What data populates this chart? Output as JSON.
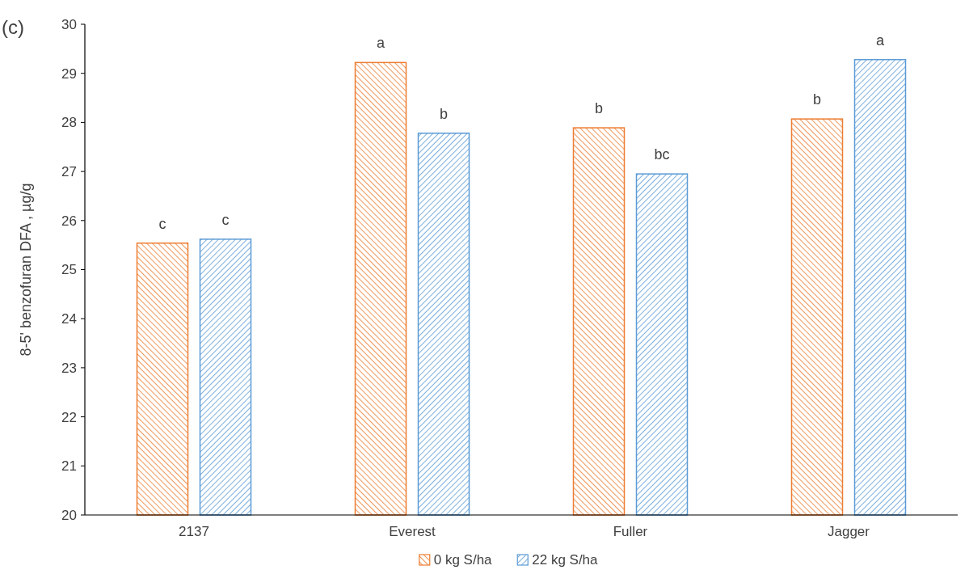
{
  "chart_data": {
    "type": "bar",
    "ylabel": "8-5' benzofuran DFA , µg/g",
    "categories": [
      "2137",
      "Everest",
      "Fuller",
      "Jagger"
    ],
    "series": [
      {
        "name": "0 kg S/ha",
        "color": "#ed7d31",
        "values": [
          25.54,
          29.22,
          27.89,
          28.07
        ]
      },
      {
        "name": "22 kg S/ha",
        "color": "#5b9bd5",
        "values": [
          25.62,
          27.78,
          26.95,
          29.28
        ]
      }
    ],
    "ylim": [
      20,
      30
    ],
    "yticks": [
      20,
      21,
      22,
      23,
      24,
      25,
      26,
      27,
      28,
      29,
      30
    ],
    "grid": false,
    "legend": "bottom",
    "annotations": [
      "(c)",
      "c",
      "c",
      "a",
      "b",
      "b",
      "bc",
      "b",
      "a"
    ]
  }
}
